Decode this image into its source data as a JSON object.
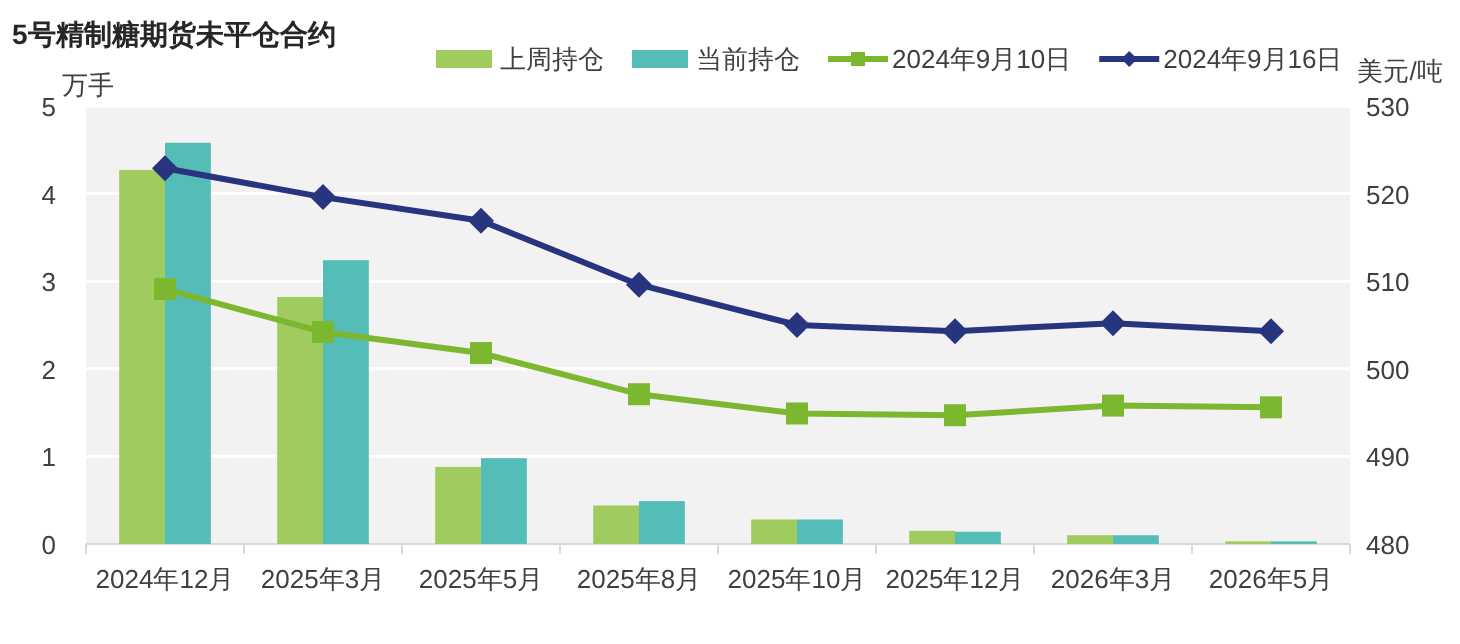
{
  "chart_data": {
    "type": "bar",
    "title": "5号精制糖期货未平仓合约",
    "ylabel": "万手",
    "y2label": "美元/吨",
    "categories": [
      "2024年12月",
      "2025年3月",
      "2025年5月",
      "2025年8月",
      "2025年10月",
      "2025年12月",
      "2026年3月",
      "2026年5月"
    ],
    "series": [
      {
        "name": "上周持仓",
        "color": "#9fcb5f",
        "values": [
          4.27,
          2.82,
          0.88,
          0.44,
          0.28,
          0.15,
          0.1,
          0.03
        ]
      },
      {
        "name": "当前持仓",
        "color": "#55bdb7",
        "values": [
          4.58,
          3.24,
          0.98,
          0.49,
          0.28,
          0.14,
          0.1,
          0.03
        ]
      },
      {
        "name": "2024年9月10日",
        "type": "line",
        "axis": "y2",
        "marker": "square",
        "color": "#7cb82f",
        "values": [
          509.1,
          504.2,
          501.8,
          497.1,
          494.9,
          494.7,
          495.8,
          495.6
        ]
      },
      {
        "name": "2024年9月16日",
        "type": "line",
        "axis": "y2",
        "marker": "diamond",
        "color": "#27357f",
        "values": [
          522.9,
          519.6,
          516.9,
          509.6,
          505.0,
          504.3,
          505.2,
          504.3
        ]
      }
    ],
    "ylim": [
      0,
      5
    ],
    "yticks": [
      0,
      1,
      2,
      3,
      4,
      5
    ],
    "y2lim": [
      480,
      530
    ],
    "y2ticks": [
      480,
      490,
      500,
      510,
      520,
      530
    ],
    "grid": "y",
    "legend": "top"
  }
}
